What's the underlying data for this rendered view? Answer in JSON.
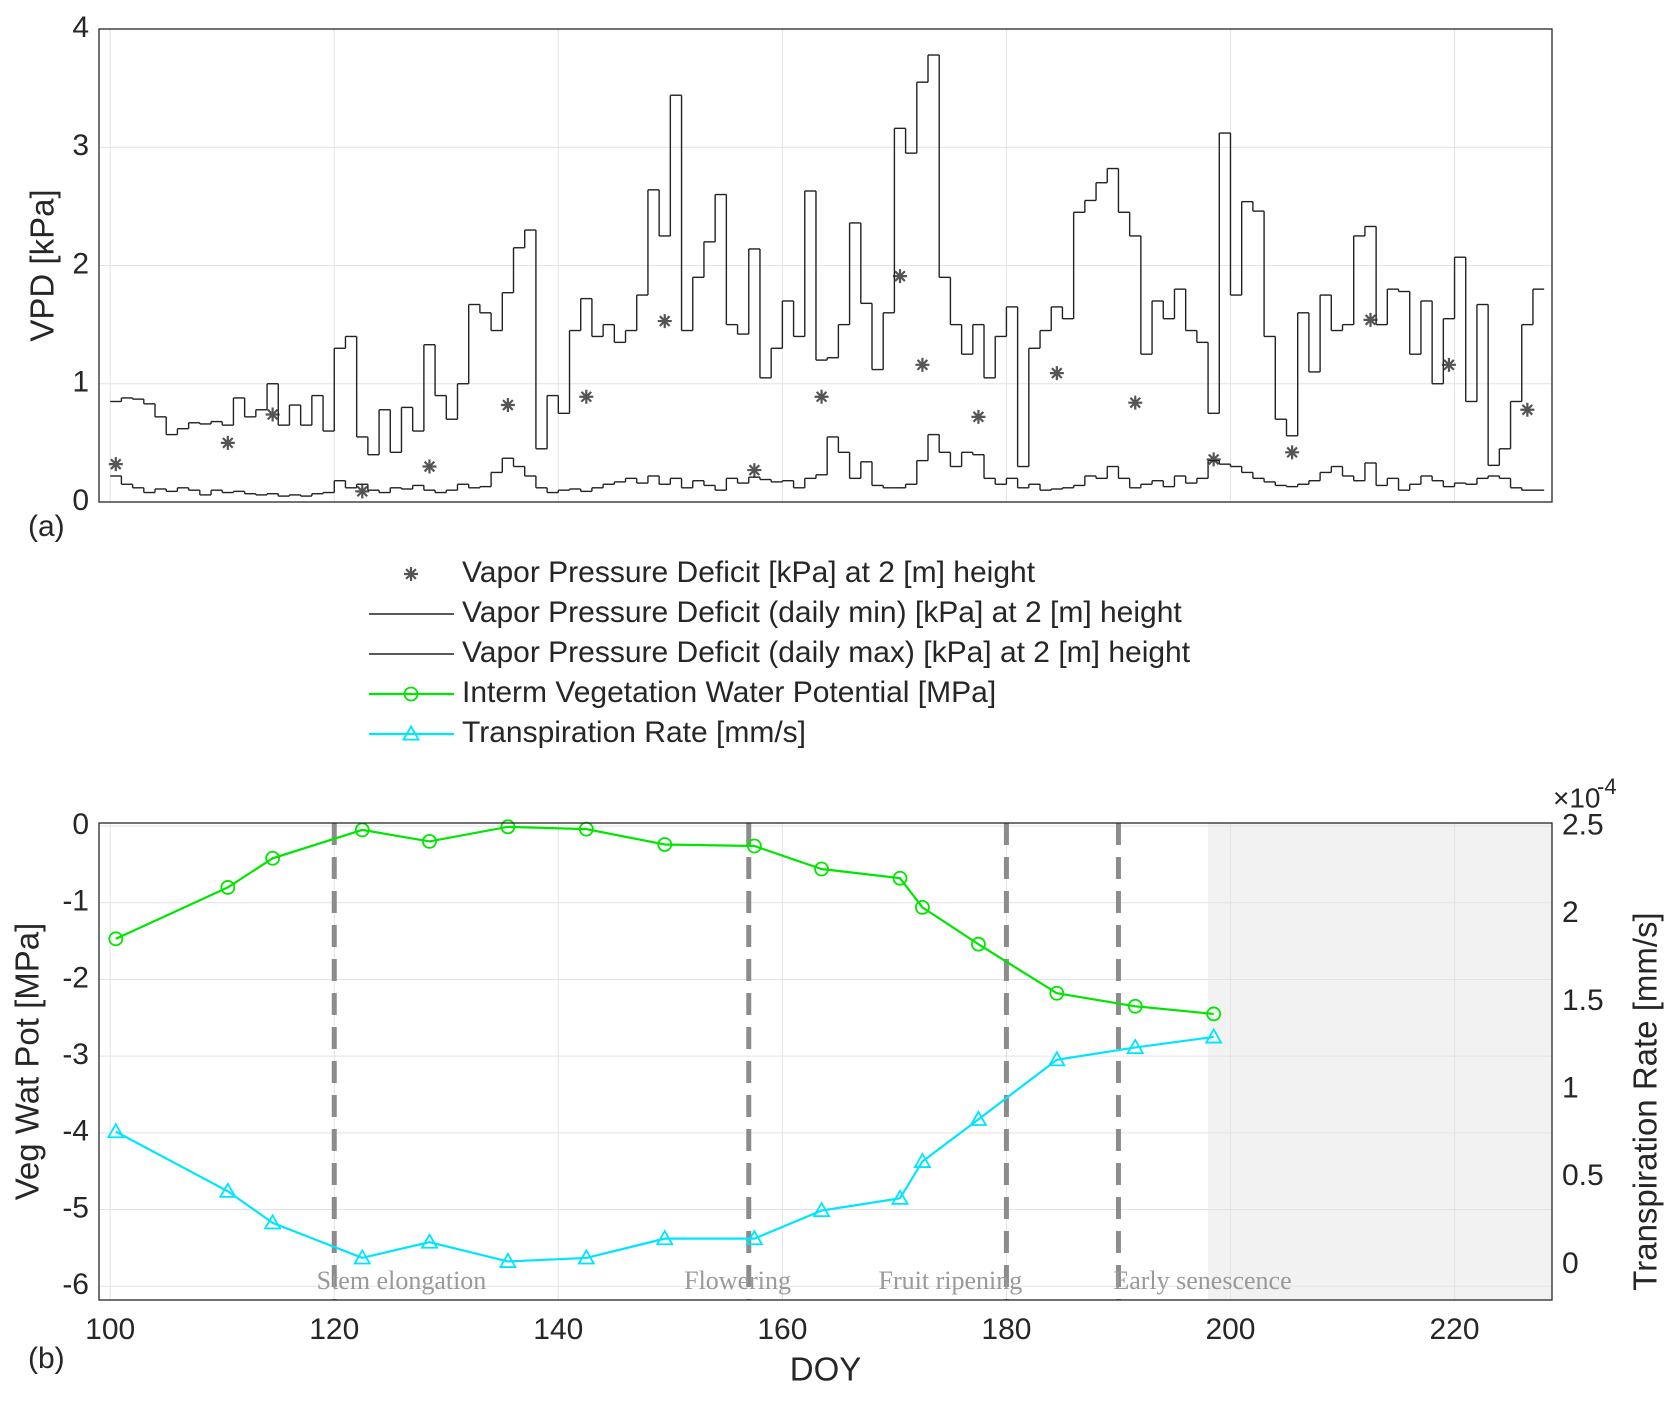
{
  "chart_data": [
    {
      "type": "line",
      "panel_label": "(a)",
      "ylabel": "VPD [kPa]",
      "xlim": [
        99,
        228.7
      ],
      "ylim": [
        0,
        4
      ],
      "yticks": [
        0,
        1,
        2,
        3,
        4
      ],
      "grid": true,
      "series": [
        {
          "name": "Vapor Pressure Deficit [kPa] at 2 [m] height",
          "color": "#555555",
          "marker": "asterisk",
          "x": [
            100.5,
            110.5,
            114.5,
            122.5,
            128.5,
            135.5,
            142.5,
            149.5,
            157.5,
            163.5,
            170.5,
            172.5,
            177.5,
            184.5,
            191.5,
            198.5,
            205.5,
            212.5,
            219.5,
            226.5
          ],
          "values": [
            0.32,
            0.5,
            0.74,
            0.09,
            0.3,
            0.82,
            0.89,
            1.53,
            0.27,
            0.89,
            1.91,
            1.16,
            0.72,
            1.09,
            0.84,
            0.36,
            0.42,
            1.54,
            1.16,
            0.78
          ]
        },
        {
          "name": "Vapor Pressure Deficit (daily min) [kPa] at 2 [m] height",
          "color": "#222222",
          "step": true,
          "x": [
            100,
            101,
            102,
            103,
            104,
            105,
            106,
            107,
            108,
            109,
            110,
            111,
            112,
            113,
            114,
            115,
            116,
            117,
            118,
            119,
            120,
            121,
            122,
            123,
            124,
            125,
            126,
            127,
            128,
            129,
            130,
            131,
            132,
            133,
            134,
            135,
            136,
            137,
            138,
            139,
            140,
            141,
            142,
            143,
            144,
            145,
            146,
            147,
            148,
            149,
            150,
            151,
            152,
            153,
            154,
            155,
            156,
            157,
            158,
            159,
            160,
            161,
            162,
            163,
            164,
            165,
            166,
            167,
            168,
            169,
            170,
            171,
            172,
            173,
            174,
            175,
            176,
            177,
            178,
            179,
            180,
            181,
            182,
            183,
            184,
            185,
            186,
            187,
            188,
            189,
            190,
            191,
            192,
            193,
            194,
            195,
            196,
            197,
            198,
            199,
            200,
            201,
            202,
            203,
            204,
            205,
            206,
            207,
            208,
            209,
            210,
            211,
            212,
            213,
            214,
            215,
            216,
            217,
            218,
            219,
            220,
            221,
            222,
            223,
            224,
            225,
            226,
            227
          ],
          "values": [
            0.22,
            0.15,
            0.12,
            0.08,
            0.11,
            0.09,
            0.12,
            0.1,
            0.06,
            0.1,
            0.08,
            0.09,
            0.07,
            0.06,
            0.07,
            0.05,
            0.06,
            0.05,
            0.07,
            0.08,
            0.18,
            0.12,
            0.15,
            0.1,
            0.08,
            0.12,
            0.11,
            0.14,
            0.1,
            0.08,
            0.1,
            0.15,
            0.12,
            0.13,
            0.25,
            0.37,
            0.3,
            0.22,
            0.12,
            0.08,
            0.1,
            0.11,
            0.09,
            0.12,
            0.15,
            0.17,
            0.2,
            0.16,
            0.22,
            0.15,
            0.2,
            0.12,
            0.18,
            0.14,
            0.1,
            0.2,
            0.16,
            0.21,
            0.19,
            0.17,
            0.18,
            0.12,
            0.2,
            0.23,
            0.55,
            0.42,
            0.2,
            0.34,
            0.14,
            0.12,
            0.12,
            0.15,
            0.35,
            0.57,
            0.42,
            0.3,
            0.42,
            0.4,
            0.2,
            0.15,
            0.2,
            0.12,
            0.15,
            0.1,
            0.11,
            0.12,
            0.14,
            0.22,
            0.2,
            0.3,
            0.2,
            0.12,
            0.15,
            0.18,
            0.13,
            0.22,
            0.16,
            0.2,
            0.35,
            0.32,
            0.3,
            0.25,
            0.2,
            0.17,
            0.14,
            0.13,
            0.15,
            0.18,
            0.25,
            0.3,
            0.22,
            0.18,
            0.33,
            0.14,
            0.2,
            0.1,
            0.15,
            0.22,
            0.18,
            0.13,
            0.16,
            0.15,
            0.2,
            0.22,
            0.2,
            0.12,
            0.1,
            0.1
          ]
        },
        {
          "name": "Vapor Pressure Deficit (daily max) [kPa] at 2 [m] height",
          "color": "#222222",
          "step": true,
          "x": [
            100,
            101,
            102,
            103,
            104,
            105,
            106,
            107,
            108,
            109,
            110,
            111,
            112,
            113,
            114,
            115,
            116,
            117,
            118,
            119,
            120,
            121,
            122,
            123,
            124,
            125,
            126,
            127,
            128,
            129,
            130,
            131,
            132,
            133,
            134,
            135,
            136,
            137,
            138,
            139,
            140,
            141,
            142,
            143,
            144,
            145,
            146,
            147,
            148,
            149,
            150,
            151,
            152,
            153,
            154,
            155,
            156,
            157,
            158,
            159,
            160,
            161,
            162,
            163,
            164,
            165,
            166,
            167,
            168,
            169,
            170,
            171,
            172,
            173,
            174,
            175,
            176,
            177,
            178,
            179,
            180,
            181,
            182,
            183,
            184,
            185,
            186,
            187,
            188,
            189,
            190,
            191,
            192,
            193,
            194,
            195,
            196,
            197,
            198,
            199,
            200,
            201,
            202,
            203,
            204,
            205,
            206,
            207,
            208,
            209,
            210,
            211,
            212,
            213,
            214,
            215,
            216,
            217,
            218,
            219,
            220,
            221,
            222,
            223,
            224,
            225,
            226,
            227
          ],
          "values": [
            0.85,
            0.88,
            0.87,
            0.83,
            0.72,
            0.57,
            0.62,
            0.67,
            0.66,
            0.68,
            0.65,
            0.88,
            0.72,
            0.78,
            1.0,
            0.65,
            0.82,
            0.65,
            0.9,
            0.6,
            1.3,
            1.4,
            0.55,
            0.4,
            0.78,
            0.42,
            0.8,
            0.6,
            1.33,
            0.9,
            0.7,
            1.0,
            1.67,
            1.6,
            1.45,
            1.77,
            2.15,
            2.3,
            0.45,
            0.9,
            0.75,
            1.45,
            1.72,
            1.4,
            1.5,
            1.35,
            1.45,
            1.75,
            2.64,
            2.25,
            3.44,
            1.45,
            1.9,
            2.2,
            2.6,
            1.5,
            1.42,
            2.14,
            1.05,
            1.3,
            1.7,
            1.4,
            2.63,
            1.2,
            1.22,
            1.5,
            2.36,
            1.68,
            1.12,
            1.6,
            3.16,
            2.95,
            3.55,
            3.78,
            1.9,
            1.5,
            1.25,
            1.5,
            1.05,
            1.4,
            1.65,
            0.3,
            1.3,
            1.45,
            1.65,
            1.55,
            2.45,
            2.55,
            2.7,
            2.82,
            2.45,
            2.25,
            1.25,
            1.7,
            1.55,
            1.8,
            1.45,
            1.35,
            0.75,
            3.12,
            1.75,
            2.54,
            2.46,
            1.4,
            0.7,
            0.56,
            1.6,
            1.1,
            1.75,
            1.45,
            1.5,
            2.25,
            2.33,
            1.5,
            1.8,
            1.78,
            1.25,
            1.7,
            1.0,
            1.55,
            2.07,
            0.85,
            1.67,
            0.31,
            0.45,
            0.85,
            1.5,
            1.8
          ]
        }
      ]
    },
    {
      "type": "line",
      "panel_label": "(b)",
      "xlabel": "DOY",
      "ylabel": "Veg Wat Pot [MPa]",
      "y2label": "Transpiration Rate [mm/s]",
      "y2_multiplier": {
        "base": "×10",
        "exponent": "-4"
      },
      "xlim": [
        99,
        228.7
      ],
      "xticks": [
        100,
        120,
        140,
        160,
        180,
        200,
        220
      ],
      "ylim": [
        -6.18,
        0.04
      ],
      "yticks": [
        -6,
        -5,
        -4,
        -3,
        -2,
        -1,
        0
      ],
      "y2lim": [
        -0.2,
        2.52
      ],
      "y2ticks": [
        0,
        0.5,
        1,
        1.5,
        2,
        2.5
      ],
      "grid": true,
      "x": [
        100.5,
        110.5,
        114.5,
        122.5,
        128.5,
        135.5,
        142.5,
        149.5,
        157.5,
        163.5,
        170.5,
        172.5,
        177.5,
        184.5,
        191.5,
        198.5
      ],
      "series": [
        {
          "name": "Interm Vegetation Water Potential [MPa]",
          "color": "#00e600",
          "marker": "circle",
          "values": [
            -1.47,
            -0.8,
            -0.42,
            -0.05,
            -0.2,
            -0.01,
            -0.04,
            -0.24,
            -0.26,
            -0.56,
            -0.68,
            -1.06,
            -1.54,
            -2.18,
            -2.35,
            -2.45
          ]
        },
        {
          "name": "Transpiration Rate [mm/s]",
          "color": "#00e5ff",
          "marker": "triangle",
          "axis": "y2",
          "values": [
            0.76,
            0.42,
            0.24,
            0.04,
            0.13,
            0.02,
            0.04,
            0.15,
            0.15,
            0.31,
            0.38,
            0.59,
            0.83,
            1.17,
            1.24,
            1.3
          ]
        }
      ],
      "phase_boundaries": [
        120,
        157,
        180,
        190
      ],
      "annotations": [
        {
          "text": "Stem elongation",
          "x": 126
        },
        {
          "text": "Flowering",
          "x": 156
        },
        {
          "text": "Fruit ripening",
          "x": 175
        },
        {
          "text": "Early senescence",
          "x": 197.5
        }
      ],
      "shaded_from": 198
    }
  ]
}
